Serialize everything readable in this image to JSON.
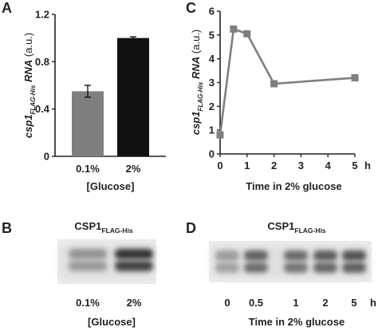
{
  "figure": {
    "panels": {
      "A": "A",
      "B": "B",
      "C": "C",
      "D": "D"
    },
    "shared_ylabel": {
      "gene": "csp1",
      "subscript": "FLAG-His",
      "rna": "RNA",
      "unit": "(a.u.)"
    }
  },
  "chart_data": [
    {
      "panel": "A",
      "type": "bar",
      "categories": [
        "0.1%",
        "2%"
      ],
      "values": [
        0.55,
        1.0
      ],
      "errors": [
        0.05,
        0.01
      ],
      "colors": [
        "#7f7f7f",
        "#111111"
      ],
      "ylim": [
        0,
        1.2
      ],
      "yticks": [
        "0",
        "0.4",
        "0.8",
        "1.2"
      ],
      "xlabel": "[Glucose]"
    },
    {
      "panel": "C",
      "type": "line",
      "x": [
        0,
        0.5,
        1,
        2,
        5
      ],
      "values": [
        0.8,
        5.25,
        5.05,
        2.95,
        3.2
      ],
      "color": "#7f7f7f",
      "xlim": [
        0,
        5
      ],
      "ylim": [
        0,
        6
      ],
      "xticks": [
        "0",
        "1",
        "2",
        "3",
        "4",
        "5"
      ],
      "yticks": [
        "0",
        "1",
        "2",
        "3",
        "4",
        "5",
        "6"
      ],
      "x_unit": "h",
      "xlabel": "Time in 2% glucose"
    }
  ],
  "blots": {
    "B": {
      "title": "CSP1",
      "title_sub": "FLAG-His",
      "lanes": [
        "0.1%",
        "2%"
      ],
      "xlabel": "[Glucose]",
      "intensity": [
        0.35,
        0.95
      ]
    },
    "D": {
      "title": "CSP1",
      "title_sub": "FLAG-His",
      "lanes": [
        "0",
        "0.5",
        "1",
        "2",
        "5"
      ],
      "unit": "h",
      "xlabel": "Time in 2% glucose",
      "intensity": [
        0.3,
        0.65,
        0.6,
        0.7,
        0.75
      ]
    }
  }
}
